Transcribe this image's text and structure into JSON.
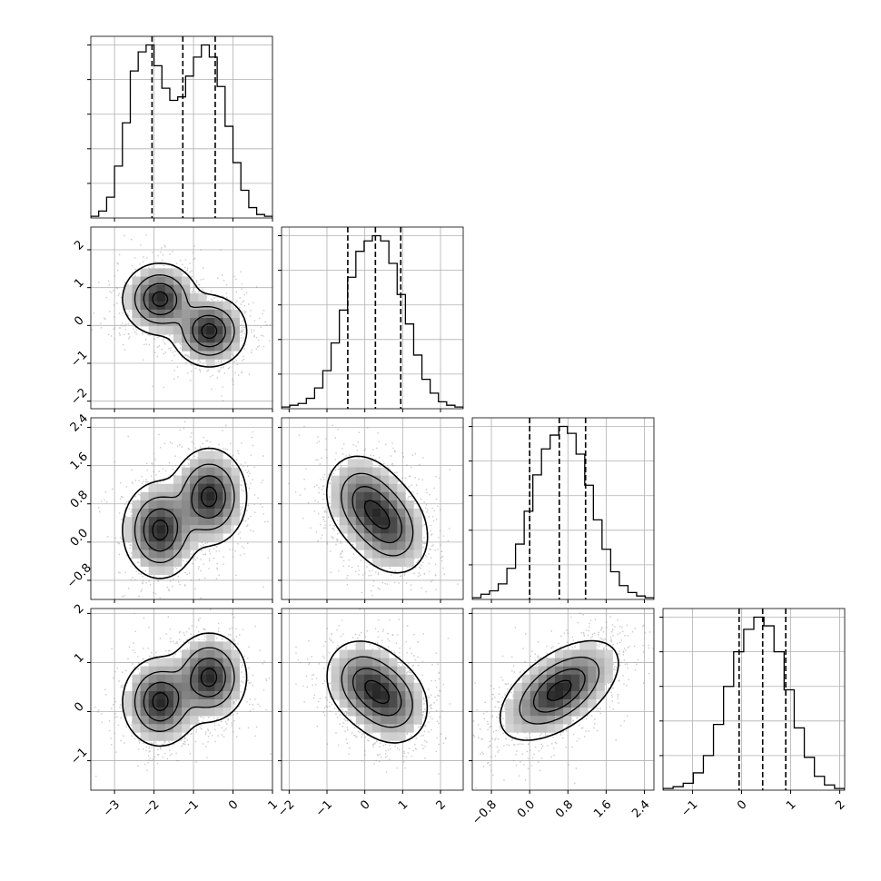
{
  "chart_data": {
    "type": "corner",
    "n_params": 4,
    "grid": true,
    "params": [
      {
        "range": [
          -3.6,
          1.0
        ],
        "ticks": [
          -3,
          -2,
          -1,
          0,
          1
        ],
        "quantiles": [
          -2.05,
          -1.27,
          -0.45
        ],
        "hist": [
          0.01,
          0.04,
          0.12,
          0.3,
          0.55,
          0.85,
          0.96,
          1.0,
          0.88,
          0.75,
          0.68,
          0.7,
          0.82,
          0.93,
          1.0,
          0.93,
          0.76,
          0.53,
          0.32,
          0.16,
          0.06,
          0.02,
          0.01
        ]
      },
      {
        "range": [
          -2.2,
          2.6
        ],
        "ticks": [
          -2,
          -1,
          0,
          1,
          2
        ],
        "quantiles": [
          -0.45,
          0.28,
          0.95
        ],
        "hist": [
          0.01,
          0.02,
          0.03,
          0.06,
          0.12,
          0.22,
          0.38,
          0.57,
          0.76,
          0.91,
          0.97,
          1.0,
          0.97,
          0.84,
          0.66,
          0.49,
          0.31,
          0.17,
          0.09,
          0.04,
          0.02,
          0.01
        ]
      },
      {
        "range": [
          -1.2,
          2.6
        ],
        "ticks": [
          -0.8,
          0.0,
          0.8,
          1.6,
          2.4
        ],
        "tick_labels": [
          "−0.8",
          "0.0",
          "0.8",
          "1.6",
          "2.4"
        ],
        "quantiles": [
          0.0,
          0.62,
          1.17
        ],
        "hist": [
          0.01,
          0.03,
          0.05,
          0.09,
          0.18,
          0.32,
          0.51,
          0.72,
          0.87,
          0.95,
          1.0,
          0.96,
          0.84,
          0.66,
          0.46,
          0.29,
          0.16,
          0.08,
          0.04,
          0.02,
          0.01
        ]
      },
      {
        "range": [
          -1.6,
          2.1
        ],
        "ticks": [
          -1,
          0,
          1,
          2
        ],
        "quantiles": [
          -0.05,
          0.43,
          0.9
        ],
        "hist": [
          0.01,
          0.02,
          0.04,
          0.1,
          0.2,
          0.38,
          0.6,
          0.8,
          0.93,
          1.0,
          0.95,
          0.8,
          0.58,
          0.36,
          0.19,
          0.08,
          0.03,
          0.01
        ]
      }
    ],
    "pairs": [
      {
        "row": 1,
        "col": 0,
        "clusters": [
          {
            "mx": -1.85,
            "my": 0.7,
            "sx": 0.42,
            "sy": 0.42,
            "rho": 0.0,
            "w": 1.0
          },
          {
            "mx": -0.6,
            "my": -0.15,
            "sx": 0.42,
            "sy": 0.42,
            "rho": 0.0,
            "w": 1.0
          }
        ]
      },
      {
        "row": 2,
        "col": 0,
        "clusters": [
          {
            "mx": -1.85,
            "my": 0.25,
            "sx": 0.42,
            "sy": 0.45,
            "rho": 0.0,
            "w": 1.0
          },
          {
            "mx": -0.6,
            "my": 0.95,
            "sx": 0.42,
            "sy": 0.45,
            "rho": 0.0,
            "w": 1.0
          }
        ]
      },
      {
        "row": 2,
        "col": 1,
        "clusters": [
          {
            "mx": 0.0,
            "my": 0.85,
            "sx": 0.48,
            "sy": 0.45,
            "rho": -0.2,
            "w": 1.0
          },
          {
            "mx": 0.65,
            "my": 0.3,
            "sx": 0.48,
            "sy": 0.45,
            "rho": -0.2,
            "w": 1.0
          }
        ]
      },
      {
        "row": 3,
        "col": 0,
        "clusters": [
          {
            "mx": -1.85,
            "my": 0.2,
            "sx": 0.42,
            "sy": 0.4,
            "rho": 0.0,
            "w": 1.0
          },
          {
            "mx": -0.6,
            "my": 0.7,
            "sx": 0.42,
            "sy": 0.4,
            "rho": 0.0,
            "w": 1.0
          }
        ]
      },
      {
        "row": 3,
        "col": 1,
        "clusters": [
          {
            "mx": 0.0,
            "my": 0.6,
            "sx": 0.48,
            "sy": 0.4,
            "rho": -0.15,
            "w": 1.0
          },
          {
            "mx": 0.65,
            "my": 0.2,
            "sx": 0.48,
            "sy": 0.4,
            "rho": -0.15,
            "w": 1.0
          }
        ]
      },
      {
        "row": 3,
        "col": 2,
        "clusters": [
          {
            "mx": 0.62,
            "my": 0.43,
            "sx": 0.55,
            "sy": 0.45,
            "rho": 0.55,
            "w": 1.0
          }
        ]
      }
    ]
  }
}
